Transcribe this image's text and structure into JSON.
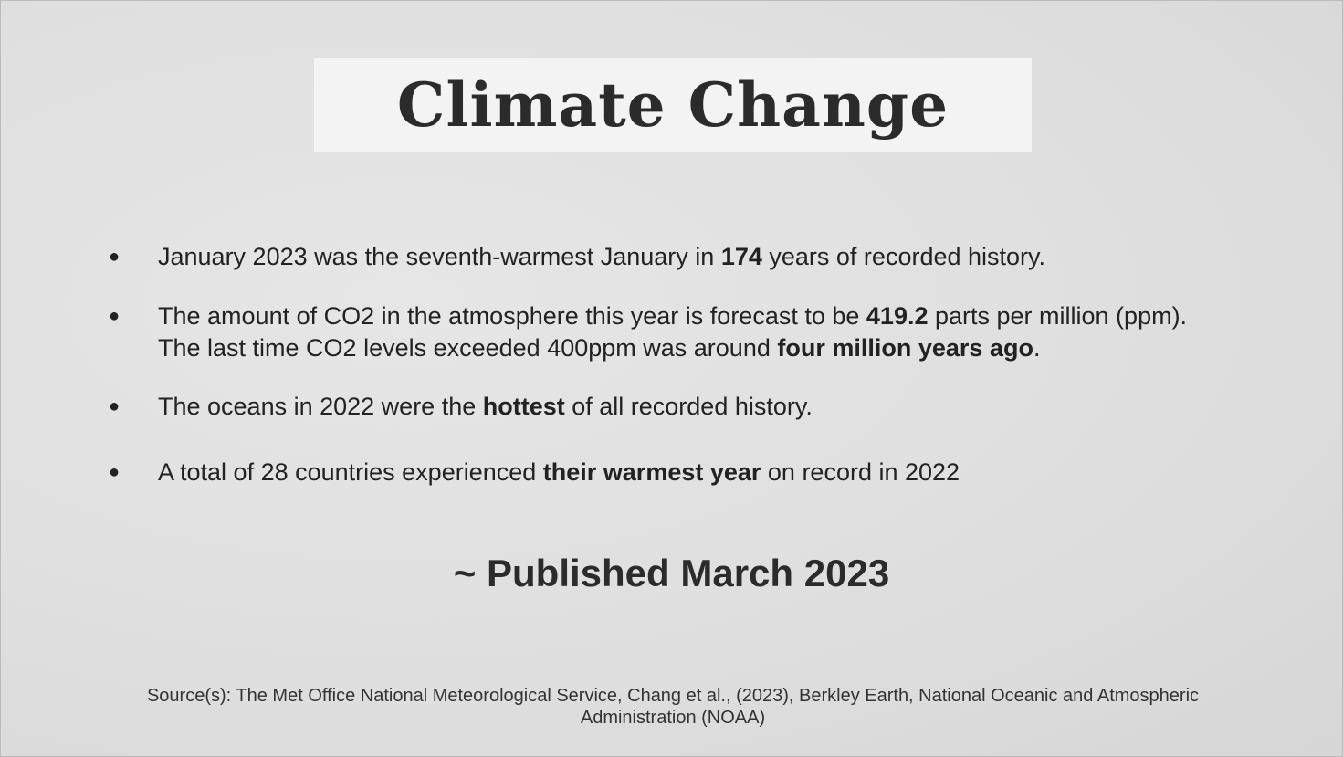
{
  "header": {
    "title": "Climate Change"
  },
  "bullets": [
    {
      "lines": [
        [
          {
            "text": "January 2023 was the seventh-warmest January in ",
            "bold": false
          },
          {
            "text": "174",
            "bold": true
          },
          {
            "text": " years of recorded history.",
            "bold": false
          }
        ]
      ]
    },
    {
      "lines": [
        [
          {
            "text": "The amount of CO2 in the atmosphere this year is forecast to be ",
            "bold": false
          },
          {
            "text": "419.2",
            "bold": true
          },
          {
            "text": " parts per million (ppm).",
            "bold": false
          }
        ],
        [
          {
            "text": "The last time CO2 levels exceeded 400ppm was around ",
            "bold": false
          },
          {
            "text": "four million years ago",
            "bold": true
          },
          {
            "text": ".",
            "bold": false
          }
        ]
      ]
    },
    {
      "lines": [
        [
          {
            "text": "The oceans in 2022 were the ",
            "bold": false
          },
          {
            "text": "hottest",
            "bold": true
          },
          {
            "text": " of all recorded history.",
            "bold": false
          }
        ]
      ]
    },
    {
      "lines": [
        [
          {
            "text": "A total of 28 countries experienced ",
            "bold": false
          },
          {
            "text": "their warmest year",
            "bold": true
          },
          {
            "text": " on record in 2022",
            "bold": false
          }
        ]
      ]
    }
  ],
  "published": "~ Published March 2023",
  "source": "Source(s): The Met Office National Meteorological Service, Chang et al., (2023), Berkley Earth, National Oceanic and Atmospheric Administration (NOAA)"
}
